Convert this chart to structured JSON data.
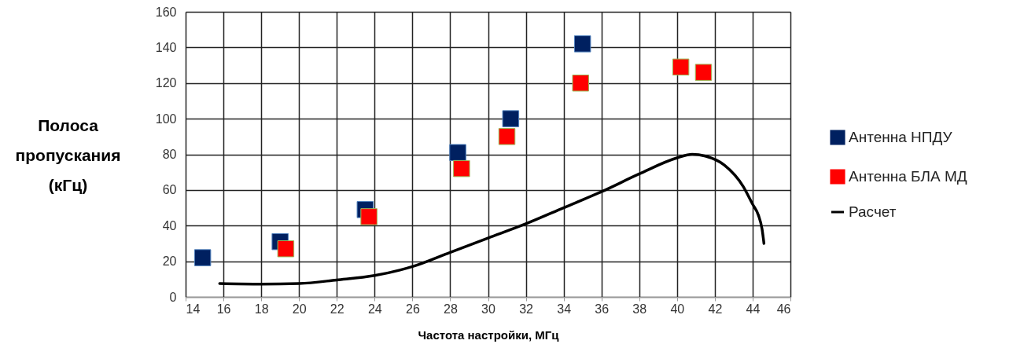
{
  "chart_data": {
    "type": "scatter",
    "xlabel": "Частота настройки, МГц",
    "ylabel": "Полоса пропускания (кГц)",
    "xlim": [
      14,
      46
    ],
    "xticks": [
      14,
      16,
      18,
      20,
      22,
      24,
      26,
      28,
      30,
      32,
      34,
      36,
      38,
      40,
      42,
      44,
      46
    ],
    "ylim": [
      0,
      160
    ],
    "yticks": [
      0,
      20,
      40,
      60,
      80,
      100,
      120,
      140,
      160
    ],
    "grid": true,
    "legend": "right",
    "marker": "square",
    "series": [
      {
        "name": "Антенна НПДУ",
        "color": "#002060",
        "x": [
          14.9,
          19.0,
          23.5,
          28.4,
          31.2,
          35.0
        ],
        "values": [
          22,
          31,
          49,
          81,
          100,
          142
        ]
      },
      {
        "name": "Антенна БЛА МД",
        "color": "#ff0000",
        "x": [
          19.3,
          23.7,
          28.6,
          31.0,
          34.9,
          40.2,
          41.4
        ],
        "values": [
          27,
          45,
          72,
          90,
          120,
          129,
          126
        ]
      },
      {
        "name": "Расчет",
        "type": "line",
        "color": "#000000",
        "marker": "none",
        "x": [
          15.8,
          18,
          20,
          22,
          24,
          26,
          28,
          30,
          32,
          34,
          36,
          38,
          40,
          40.8,
          41.5,
          42.5,
          43.5,
          44,
          44.3,
          44.5,
          44.6
        ],
        "values": [
          7.5,
          7.2,
          7.5,
          9.5,
          12,
          17,
          25,
          33,
          41,
          50,
          59,
          69,
          78,
          80,
          79,
          74,
          62,
          52,
          46,
          38,
          30
        ]
      }
    ]
  }
}
